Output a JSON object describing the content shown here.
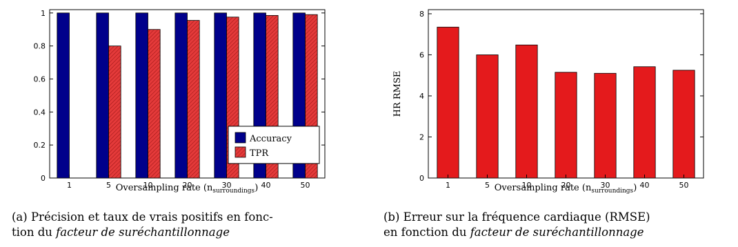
{
  "chart_data": [
    {
      "type": "bar",
      "categories": [
        "1",
        "5",
        "10",
        "20",
        "30",
        "40",
        "50"
      ],
      "series": [
        {
          "name": "Accuracy",
          "color": "#00008b",
          "values": [
            1.0,
            1.0,
            1.0,
            1.0,
            1.0,
            1.0,
            1.0
          ]
        },
        {
          "name": "TPR",
          "color": "#e43a3a",
          "hatch": true,
          "values": [
            0.0,
            0.8,
            0.9,
            0.955,
            0.975,
            0.985,
            0.99
          ]
        }
      ],
      "xlabel": "Oversampling rate (n",
      "xlabel_sub": "surroundings",
      "xlabel_end": ")",
      "ylabel": "",
      "ylim": [
        0,
        1.02
      ],
      "yticks": [
        0,
        0.2,
        0.4,
        0.6,
        0.8,
        1
      ],
      "ytick_labels": [
        "0",
        "0.2",
        "0.4",
        "0.6",
        "0.8",
        "1"
      ],
      "legend": "lower-right",
      "grid": false
    },
    {
      "type": "bar",
      "categories": [
        "1",
        "5",
        "10",
        "20",
        "30",
        "40",
        "50"
      ],
      "series": [
        {
          "name": "",
          "color": "#e41a1c",
          "values": [
            7.35,
            6.0,
            6.48,
            5.15,
            5.1,
            5.42,
            5.25
          ]
        }
      ],
      "xlabel": "Oversampling rate (n",
      "xlabel_sub": "surroundings",
      "xlabel_end": ")",
      "ylabel": "HR RMSE",
      "ylim": [
        0,
        8.2
      ],
      "yticks": [
        0,
        2,
        4,
        6,
        8
      ],
      "ytick_labels": [
        "0",
        "2",
        "4",
        "6",
        "8"
      ],
      "legend": "none",
      "grid": false
    }
  ],
  "captions": {
    "a_line1": "(a) Précision et taux de vrais positifs en fonc-",
    "a_line2_prefix": "tion du ",
    "a_line2_italic": "facteur de suréchantillonnage",
    "b_line1": "(b) Erreur sur la fréquence cardiaque (RMSE)",
    "b_line2_prefix": "en fonction du ",
    "b_line2_italic": "facteur de suréchantillonnage"
  }
}
